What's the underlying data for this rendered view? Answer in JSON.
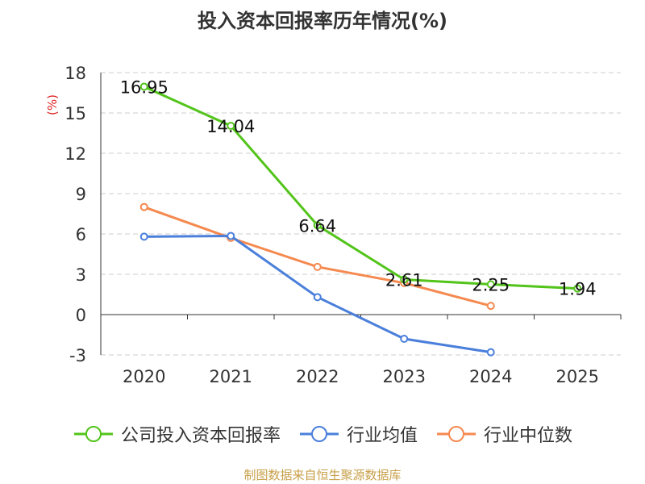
{
  "chart_data": {
    "type": "line",
    "title": "投入资本回报率历年情况(%)",
    "ylabel": "(%)",
    "xlabel": "",
    "categories": [
      "2020",
      "2021",
      "2022",
      "2023",
      "2024",
      "2025"
    ],
    "ylim": [
      -3,
      18
    ],
    "yticks": [
      -3,
      0,
      3,
      6,
      9,
      12,
      15,
      18
    ],
    "grid": "horizontal-dashed",
    "legend": "bottom",
    "series": [
      {
        "name": "公司投入资本回报率",
        "color": "#52c41a",
        "values": [
          16.95,
          14.04,
          6.64,
          2.61,
          2.25,
          1.94
        ],
        "labels": [
          "16.95",
          "14.04",
          "6.64",
          "2.61",
          "2.25",
          "1.94"
        ]
      },
      {
        "name": "行业均值",
        "color": "#4a7fdb",
        "values": [
          5.8,
          5.85,
          1.3,
          -1.8,
          -2.8,
          null
        ]
      },
      {
        "name": "行业中位数",
        "color": "#f5894f",
        "values": [
          8.0,
          5.7,
          3.55,
          2.35,
          0.65,
          null
        ]
      }
    ]
  },
  "source": "制图数据来自恒生聚源数据库"
}
